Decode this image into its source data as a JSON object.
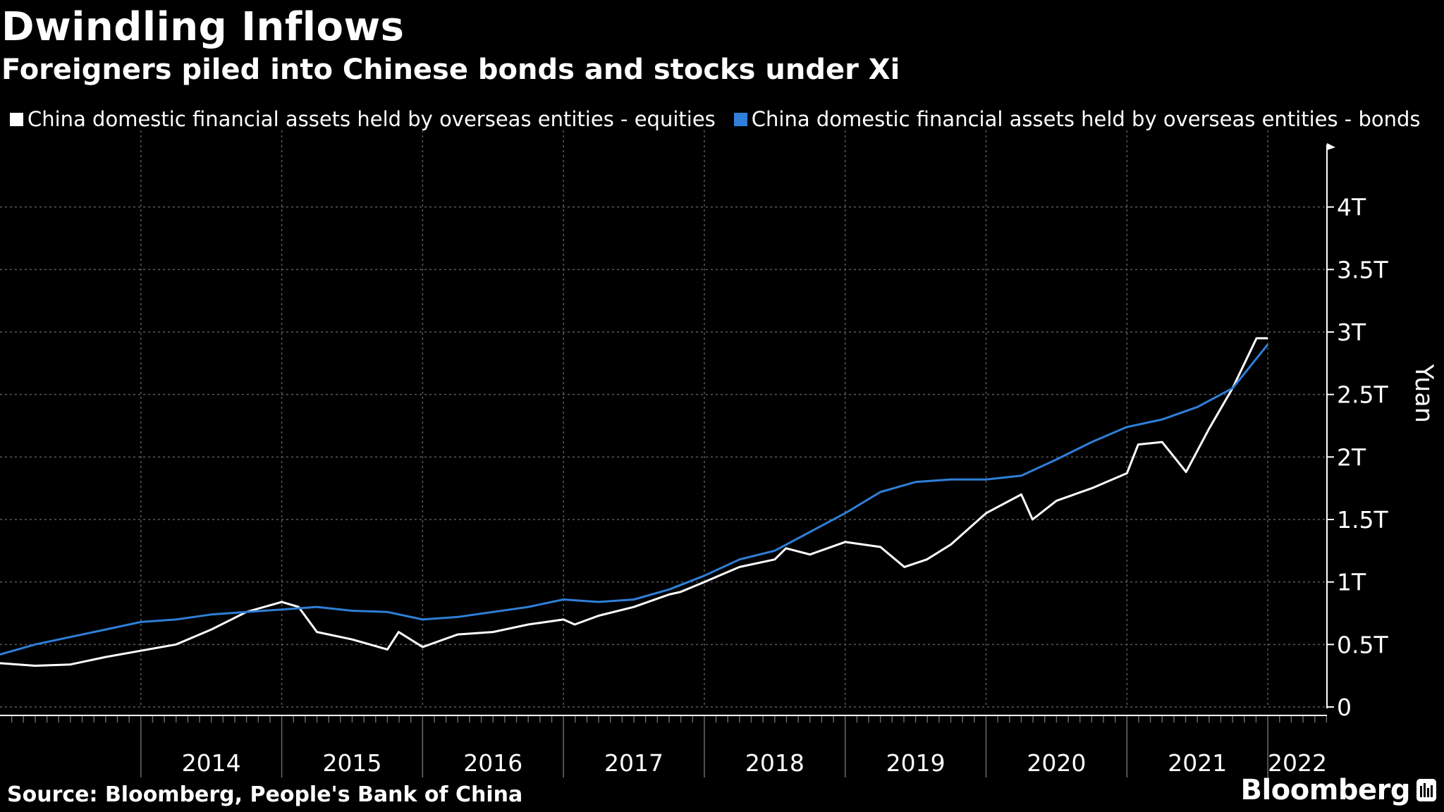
{
  "chart_data": {
    "type": "line",
    "title": "Dwindling Inflows",
    "subtitle": "Foreigners piled into Chinese bonds and stocks under Xi",
    "ylabel": "Yuan",
    "ylim": [
      0,
      4.5
    ],
    "xlim": [
      2013.0,
      2022.42
    ],
    "y_ticks": [
      {
        "value": 0,
        "label": "0"
      },
      {
        "value": 0.5,
        "label": "0.5T"
      },
      {
        "value": 1,
        "label": "1T"
      },
      {
        "value": 1.5,
        "label": "1.5T"
      },
      {
        "value": 2,
        "label": "2T"
      },
      {
        "value": 2.5,
        "label": "2.5T"
      },
      {
        "value": 3,
        "label": "3T"
      },
      {
        "value": 3.5,
        "label": "3.5T"
      },
      {
        "value": 4,
        "label": "4T"
      }
    ],
    "x_ticks": [
      {
        "value": 2014,
        "label": "2014"
      },
      {
        "value": 2015,
        "label": "2015"
      },
      {
        "value": 2016,
        "label": "2016"
      },
      {
        "value": 2017,
        "label": "2017"
      },
      {
        "value": 2018,
        "label": "2018"
      },
      {
        "value": 2019,
        "label": "2019"
      },
      {
        "value": 2020,
        "label": "2020"
      },
      {
        "value": 2021,
        "label": "2021"
      },
      {
        "value": 2022,
        "label": "2022"
      }
    ],
    "grid": true,
    "legend_position": "top-left",
    "series": [
      {
        "name": "China domestic financial assets held by overseas entities - equities",
        "color": "#ffffff",
        "points": [
          [
            2013.0,
            0.35
          ],
          [
            2013.25,
            0.33
          ],
          [
            2013.5,
            0.34
          ],
          [
            2013.75,
            0.4
          ],
          [
            2014.0,
            0.45
          ],
          [
            2014.25,
            0.5
          ],
          [
            2014.5,
            0.62
          ],
          [
            2014.75,
            0.76
          ],
          [
            2015.0,
            0.84
          ],
          [
            2015.12,
            0.8
          ],
          [
            2015.25,
            0.6
          ],
          [
            2015.5,
            0.54
          ],
          [
            2015.75,
            0.46
          ],
          [
            2015.83,
            0.6
          ],
          [
            2016.0,
            0.48
          ],
          [
            2016.25,
            0.58
          ],
          [
            2016.5,
            0.6
          ],
          [
            2016.75,
            0.66
          ],
          [
            2017.0,
            0.7
          ],
          [
            2017.08,
            0.66
          ],
          [
            2017.25,
            0.73
          ],
          [
            2017.5,
            0.8
          ],
          [
            2017.75,
            0.9
          ],
          [
            2017.83,
            0.92
          ],
          [
            2018.0,
            1.0
          ],
          [
            2018.25,
            1.12
          ],
          [
            2018.5,
            1.18
          ],
          [
            2018.58,
            1.27
          ],
          [
            2018.75,
            1.22
          ],
          [
            2019.0,
            1.32
          ],
          [
            2019.25,
            1.28
          ],
          [
            2019.42,
            1.12
          ],
          [
            2019.58,
            1.18
          ],
          [
            2019.75,
            1.3
          ],
          [
            2020.0,
            1.55
          ],
          [
            2020.25,
            1.7
          ],
          [
            2020.33,
            1.5
          ],
          [
            2020.5,
            1.65
          ],
          [
            2020.75,
            1.75
          ],
          [
            2021.0,
            1.87
          ],
          [
            2021.08,
            2.1
          ],
          [
            2021.25,
            2.12
          ],
          [
            2021.42,
            1.88
          ],
          [
            2021.58,
            2.22
          ],
          [
            2021.75,
            2.55
          ],
          [
            2021.92,
            2.95
          ],
          [
            2022.0,
            2.95
          ]
        ]
      },
      {
        "name": "China domestic financial assets held by overseas entities - bonds",
        "color": "#2f7fd8",
        "points": [
          [
            2013.0,
            0.42
          ],
          [
            2013.25,
            0.5
          ],
          [
            2013.5,
            0.56
          ],
          [
            2013.75,
            0.62
          ],
          [
            2014.0,
            0.68
          ],
          [
            2014.25,
            0.7
          ],
          [
            2014.5,
            0.74
          ],
          [
            2014.75,
            0.76
          ],
          [
            2015.0,
            0.78
          ],
          [
            2015.25,
            0.8
          ],
          [
            2015.5,
            0.77
          ],
          [
            2015.75,
            0.76
          ],
          [
            2016.0,
            0.7
          ],
          [
            2016.25,
            0.72
          ],
          [
            2016.5,
            0.76
          ],
          [
            2016.75,
            0.8
          ],
          [
            2017.0,
            0.86
          ],
          [
            2017.25,
            0.84
          ],
          [
            2017.5,
            0.86
          ],
          [
            2017.75,
            0.94
          ],
          [
            2018.0,
            1.05
          ],
          [
            2018.25,
            1.18
          ],
          [
            2018.5,
            1.25
          ],
          [
            2018.75,
            1.4
          ],
          [
            2019.0,
            1.55
          ],
          [
            2019.25,
            1.72
          ],
          [
            2019.5,
            1.8
          ],
          [
            2019.75,
            1.82
          ],
          [
            2020.0,
            1.82
          ],
          [
            2020.25,
            1.85
          ],
          [
            2020.5,
            1.98
          ],
          [
            2020.75,
            2.12
          ],
          [
            2021.0,
            2.24
          ],
          [
            2021.25,
            2.3
          ],
          [
            2021.5,
            2.4
          ],
          [
            2021.75,
            2.55
          ],
          [
            2022.0,
            2.9
          ]
        ]
      }
    ]
  },
  "legend": {
    "equities": "China domestic financial assets held by overseas entities - equities",
    "bonds": "China domestic financial assets held by overseas entities - bonds"
  },
  "source": "Source: Bloomberg, People's Bank of China",
  "brand": "Bloomberg"
}
